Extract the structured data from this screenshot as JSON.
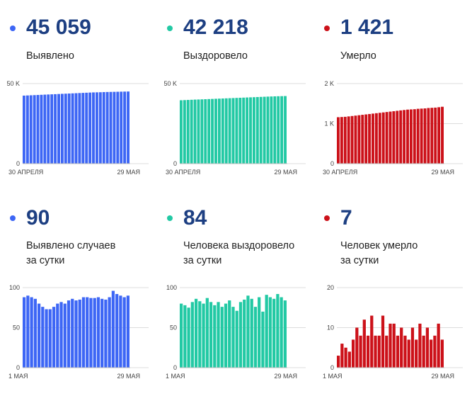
{
  "colors": {
    "blue": "#3d66f5",
    "green": "#22c9a4",
    "red": "#cc1119",
    "number": "#1d3f82"
  },
  "panels": [
    {
      "value": "45 059",
      "label_lines": [
        "Выявлено"
      ],
      "color": "#3d66f5",
      "dot_color": "#3d66f5"
    },
    {
      "value": "42 218",
      "label_lines": [
        "Выздоровело"
      ],
      "color": "#22c9a4",
      "dot_color": "#22c9a4"
    },
    {
      "value": "1 421",
      "label_lines": [
        "Умерло"
      ],
      "color": "#cc1119",
      "dot_color": "#cc1119"
    },
    {
      "value": "90",
      "label_lines": [
        "Выявлено случаев",
        "за сутки"
      ],
      "color": "#3d66f5",
      "dot_color": "#3d66f5"
    },
    {
      "value": "84",
      "label_lines": [
        "Человека выздоровело",
        "за сутки"
      ],
      "color": "#22c9a4",
      "dot_color": "#22c9a4"
    },
    {
      "value": "7",
      "label_lines": [
        "Человек умерло",
        "за сутки"
      ],
      "color": "#cc1119",
      "dot_color": "#cc1119"
    }
  ],
  "chart_data": [
    {
      "type": "bar",
      "x_start_label": "30 АПРЕЛЯ",
      "x_end_label": "29 МАЯ",
      "yticks": [
        0,
        50000
      ],
      "ytick_labels": [
        "0",
        "50 K"
      ],
      "ylim": [
        0,
        50000
      ],
      "values": [
        42500,
        42600,
        42700,
        42800,
        42900,
        43000,
        43100,
        43200,
        43300,
        43400,
        43500,
        43600,
        43700,
        43800,
        43900,
        44000,
        44100,
        44200,
        44300,
        44400,
        44500,
        44550,
        44600,
        44700,
        44750,
        44800,
        44850,
        44900,
        44950,
        45000,
        45059
      ]
    },
    {
      "type": "bar",
      "x_start_label": "30 АПРЕЛЯ",
      "x_end_label": "29 МАЯ",
      "yticks": [
        0,
        50000
      ],
      "ytick_labels": [
        "0",
        "50 K"
      ],
      "ylim": [
        0,
        50000
      ],
      "values": [
        39600,
        39700,
        39800,
        39900,
        40000,
        40080,
        40160,
        40250,
        40340,
        40430,
        40520,
        40610,
        40700,
        40790,
        40880,
        40970,
        41060,
        41150,
        41240,
        41330,
        41420,
        41510,
        41600,
        41690,
        41780,
        41870,
        41950,
        42030,
        42100,
        42160,
        42218
      ]
    },
    {
      "type": "bar",
      "x_start_label": "30 АПРЕЛЯ",
      "x_end_label": "29 МАЯ",
      "yticks": [
        0,
        1000,
        2000
      ],
      "ytick_labels": [
        "0",
        "1 K",
        "2 K"
      ],
      "ylim": [
        0,
        2000
      ],
      "values": [
        1160,
        1165,
        1170,
        1180,
        1190,
        1200,
        1210,
        1220,
        1230,
        1240,
        1250,
        1260,
        1270,
        1280,
        1290,
        1300,
        1310,
        1320,
        1330,
        1340,
        1350,
        1355,
        1360,
        1370,
        1375,
        1380,
        1390,
        1395,
        1400,
        1410,
        1421
      ]
    },
    {
      "type": "bar",
      "x_start_label": "1 МАЯ",
      "x_end_label": "29 МАЯ",
      "yticks": [
        0,
        50,
        100
      ],
      "ytick_labels": [
        "0",
        "50",
        "100"
      ],
      "ylim": [
        0,
        100
      ],
      "values": [
        88,
        90,
        88,
        86,
        80,
        76,
        73,
        73,
        76,
        80,
        82,
        80,
        84,
        86,
        84,
        85,
        88,
        88,
        87,
        87,
        88,
        86,
        85,
        88,
        96,
        92,
        90,
        88,
        90
      ]
    },
    {
      "type": "bar",
      "x_start_label": "1 МАЯ",
      "x_end_label": "29 МАЯ",
      "yticks": [
        0,
        50,
        100
      ],
      "ytick_labels": [
        "0",
        "50",
        "100"
      ],
      "ylim": [
        0,
        100
      ],
      "values": [
        80,
        78,
        75,
        82,
        86,
        83,
        80,
        87,
        82,
        78,
        82,
        76,
        80,
        84,
        76,
        71,
        82,
        85,
        90,
        86,
        76,
        88,
        70,
        91,
        88,
        86,
        92,
        88,
        84
      ]
    },
    {
      "type": "bar",
      "x_start_label": "1 МАЯ",
      "x_end_label": "29 МАЯ",
      "yticks": [
        0,
        10,
        20
      ],
      "ytick_labels": [
        "0",
        "10",
        "20"
      ],
      "ylim": [
        0,
        20
      ],
      "values": [
        3,
        6,
        5,
        4,
        7,
        10,
        8,
        12,
        8,
        13,
        8,
        8,
        13,
        8,
        11,
        11,
        8,
        10,
        8,
        7,
        10,
        7,
        11,
        8,
        10,
        7,
        8,
        11,
        7
      ]
    }
  ]
}
